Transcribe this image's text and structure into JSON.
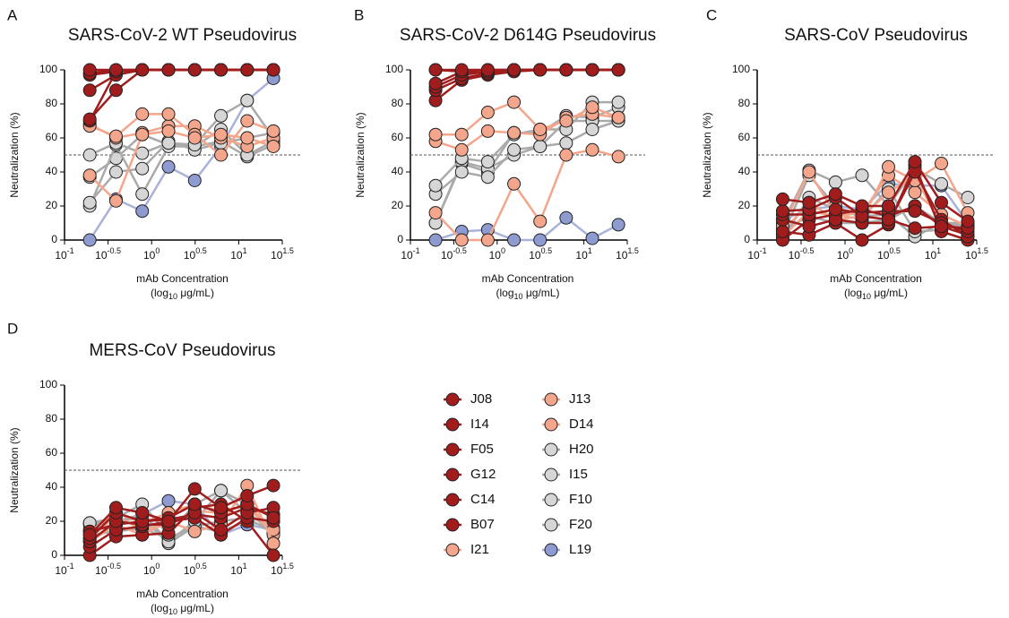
{
  "chart_data": [
    {
      "type": "line",
      "label": "A",
      "title": "SARS-CoV-2 WT Pseudovirus",
      "y_label": "Neutralization (%)",
      "x_label": "mAb Concentration",
      "x_unit": {
        "pre": "(log",
        "sub": "10",
        "post": " μg/mL)"
      },
      "log_x": true,
      "reference_line": 50,
      "x": [
        0.195,
        0.39,
        0.78,
        1.5625,
        3.125,
        6.25,
        12.5,
        25
      ],
      "xlim": [
        0.1,
        31.6228
      ],
      "xticks": [
        {
          "value": 0.1,
          "label": "10",
          "exponent": "-1"
        },
        {
          "value": 0.316228,
          "label": "10",
          "exponent": "-0.5"
        },
        {
          "value": 1,
          "label": "10",
          "exponent": "0"
        },
        {
          "value": 3.16228,
          "label": "10",
          "exponent": "0.5"
        },
        {
          "value": 10,
          "label": "10",
          "exponent": "1"
        },
        {
          "value": 31.6228,
          "label": "10",
          "exponent": "1.5"
        }
      ],
      "ylim": [
        0,
        100
      ],
      "yticks": [
        0,
        20,
        40,
        60,
        80,
        100
      ],
      "series": [
        {
          "name": "J08",
          "color": "#a11d1d",
          "values": [
            100,
            100,
            100,
            100,
            100,
            100,
            100,
            100
          ]
        },
        {
          "name": "I14",
          "color": "#a11d1d",
          "values": [
            98,
            100,
            100,
            100,
            100,
            100,
            100,
            100
          ]
        },
        {
          "name": "F05",
          "color": "#a11d1d",
          "values": [
            97,
            99,
            100,
            100,
            100,
            100,
            100,
            100
          ]
        },
        {
          "name": "G12",
          "color": "#a11d1d",
          "values": [
            88,
            97,
            100,
            100,
            100,
            100,
            100,
            100
          ]
        },
        {
          "name": "C14",
          "color": "#a11d1d",
          "values": [
            71,
            88,
            100,
            100,
            100,
            100,
            100,
            100
          ]
        },
        {
          "name": "B07",
          "color": "#a11d1d",
          "values": [
            70,
            99,
            100,
            100,
            100,
            100,
            100,
            100
          ]
        },
        {
          "name": "I21",
          "color": "#f4a68c",
          "values": [
            38,
            23,
            62,
            64,
            60,
            62,
            60,
            55
          ]
        },
        {
          "name": "J13",
          "color": "#f4a68c",
          "values": [
            67,
            61,
            74,
            74,
            62,
            50,
            70,
            64
          ]
        },
        {
          "name": "D14",
          "color": "#f4a68c",
          "values": [
            68,
            60,
            63,
            67,
            67,
            60,
            55,
            60
          ]
        },
        {
          "name": "H20",
          "color": "#d6d6d6",
          "values": [
            50,
            57,
            51,
            57,
            56,
            73,
            82,
            60
          ]
        },
        {
          "name": "I15",
          "color": "#d6d6d6",
          "values": [
            22,
            40,
            42,
            58,
            53,
            57,
            60,
            63
          ]
        },
        {
          "name": "F10",
          "color": "#d6d6d6",
          "values": [
            20,
            56,
            27,
            55,
            55,
            65,
            50,
            58
          ]
        },
        {
          "name": "F20",
          "color": "#d6d6d6",
          "values": [
            37,
            48,
            62,
            56,
            55,
            58,
            49,
            56
          ]
        },
        {
          "name": "L19",
          "color": "#8e9bd0",
          "values": [
            0,
            24,
            17,
            43,
            35,
            55,
            82,
            95
          ]
        }
      ]
    },
    {
      "type": "line",
      "label": "B",
      "title": "SARS-CoV-2 D614G Pseudovirus",
      "y_label": "Neutralization (%)",
      "x_label": "mAb Concentration",
      "x_unit": {
        "pre": "(log",
        "sub": "10",
        "post": " μg/mL)"
      },
      "log_x": true,
      "reference_line": 50,
      "x": [
        0.195,
        0.39,
        0.78,
        1.5625,
        3.125,
        6.25,
        12.5,
        25
      ],
      "xlim": [
        0.1,
        31.6228
      ],
      "xticks": [
        {
          "value": 0.1,
          "label": "10",
          "exponent": "-1"
        },
        {
          "value": 0.316228,
          "label": "10",
          "exponent": "-0.5"
        },
        {
          "value": 1,
          "label": "10",
          "exponent": "0"
        },
        {
          "value": 3.16228,
          "label": "10",
          "exponent": "0.5"
        },
        {
          "value": 10,
          "label": "10",
          "exponent": "1"
        },
        {
          "value": 31.6228,
          "label": "10",
          "exponent": "1.5"
        }
      ],
      "ylim": [
        0,
        100
      ],
      "yticks": [
        0,
        20,
        40,
        60,
        80,
        100
      ],
      "series": [
        {
          "name": "J08",
          "color": "#a11d1d",
          "values": [
            100,
            100,
            100,
            100,
            100,
            100,
            100,
            100
          ]
        },
        {
          "name": "I14",
          "color": "#a11d1d",
          "values": [
            92,
            99,
            100,
            100,
            100,
            100,
            100,
            100
          ]
        },
        {
          "name": "F05",
          "color": "#a11d1d",
          "values": [
            90,
            97,
            99,
            100,
            100,
            100,
            100,
            100
          ]
        },
        {
          "name": "G12",
          "color": "#a11d1d",
          "values": [
            88,
            95,
            98,
            100,
            100,
            100,
            100,
            100
          ]
        },
        {
          "name": "C14",
          "color": "#a11d1d",
          "values": [
            82,
            94,
            97,
            99,
            100,
            100,
            100,
            100
          ]
        },
        {
          "name": "B07",
          "color": "#a11d1d",
          "values": [
            100,
            99,
            98,
            100,
            100,
            100,
            100,
            100
          ]
        },
        {
          "name": "I21",
          "color": "#f4a68c",
          "values": [
            16,
            0,
            0,
            33,
            11,
            50,
            53,
            49
          ]
        },
        {
          "name": "J13",
          "color": "#f4a68c",
          "values": [
            62,
            62,
            75,
            81,
            65,
            70,
            78,
            72
          ]
        },
        {
          "name": "D14",
          "color": "#f4a68c",
          "values": [
            58,
            53,
            64,
            63,
            62,
            72,
            74,
            72
          ]
        },
        {
          "name": "H20",
          "color": "#d6d6d6",
          "values": [
            32,
            48,
            46,
            62,
            65,
            65,
            81,
            81
          ]
        },
        {
          "name": "I15",
          "color": "#d6d6d6",
          "values": [
            27,
            40,
            37,
            53,
            55,
            57,
            65,
            70
          ]
        },
        {
          "name": "F10",
          "color": "#d6d6d6",
          "values": [
            10,
            46,
            42,
            50,
            55,
            70,
            70,
            70
          ]
        },
        {
          "name": "F20",
          "color": "#d6d6d6",
          "values": [
            10,
            45,
            40,
            63,
            63,
            73,
            72,
            78
          ]
        },
        {
          "name": "L19",
          "color": "#8e9bd0",
          "values": [
            0,
            5,
            6,
            0,
            0,
            13,
            1,
            9
          ]
        }
      ]
    },
    {
      "type": "line",
      "label": "C",
      "title": "SARS-CoV Pseudovirus",
      "y_label": "Neutralization (%)",
      "x_label": "mAb Concentration",
      "x_unit": {
        "pre": "(log",
        "sub": "10",
        "post": " μg/mL)"
      },
      "log_x": true,
      "reference_line": 50,
      "x": [
        0.195,
        0.39,
        0.78,
        1.5625,
        3.125,
        6.25,
        12.5,
        25
      ],
      "xlim": [
        0.1,
        31.6228
      ],
      "xticks": [
        {
          "value": 0.1,
          "label": "10",
          "exponent": "-1"
        },
        {
          "value": 0.316228,
          "label": "10",
          "exponent": "-0.5"
        },
        {
          "value": 1,
          "label": "10",
          "exponent": "0"
        },
        {
          "value": 3.16228,
          "label": "10",
          "exponent": "0.5"
        },
        {
          "value": 10,
          "label": "10",
          "exponent": "1"
        },
        {
          "value": 31.6228,
          "label": "10",
          "exponent": "1.5"
        }
      ],
      "ylim": [
        0,
        100
      ],
      "yticks": [
        0,
        20,
        40,
        60,
        80,
        100
      ],
      "series": [
        {
          "name": "J08",
          "color": "#a11d1d",
          "values": [
            24,
            22,
            27,
            20,
            20,
            46,
            22,
            11
          ]
        },
        {
          "name": "I14",
          "color": "#a11d1d",
          "values": [
            17,
            18,
            25,
            14,
            12,
            7,
            8,
            7
          ]
        },
        {
          "name": "F05",
          "color": "#a11d1d",
          "values": [
            15,
            15,
            18,
            16,
            17,
            17,
            10,
            5
          ]
        },
        {
          "name": "G12",
          "color": "#a11d1d",
          "values": [
            12,
            8,
            12,
            10,
            10,
            40,
            12,
            2
          ]
        },
        {
          "name": "C14",
          "color": "#a11d1d",
          "values": [
            5,
            3,
            10,
            0,
            9,
            44,
            5,
            0
          ]
        },
        {
          "name": "B07",
          "color": "#a11d1d",
          "values": [
            0,
            12,
            15,
            18,
            14,
            20,
            8,
            3
          ]
        },
        {
          "name": "I21",
          "color": "#f4a68c",
          "values": [
            8,
            40,
            15,
            12,
            43,
            35,
            45,
            16
          ]
        },
        {
          "name": "J13",
          "color": "#f4a68c",
          "values": [
            2,
            17,
            14,
            16,
            38,
            28,
            15,
            8
          ]
        },
        {
          "name": "D14",
          "color": "#f4a68c",
          "values": [
            5,
            22,
            12,
            14,
            28,
            38,
            8,
            7
          ]
        },
        {
          "name": "H20",
          "color": "#d6d6d6",
          "values": [
            10,
            41,
            34,
            38,
            20,
            42,
            33,
            25
          ]
        },
        {
          "name": "I15",
          "color": "#d6d6d6",
          "values": [
            3,
            38,
            20,
            13,
            30,
            5,
            6,
            10
          ]
        },
        {
          "name": "F10",
          "color": "#d6d6d6",
          "values": [
            1,
            25,
            18,
            14,
            15,
            2,
            10,
            8
          ]
        },
        {
          "name": "F20",
          "color": "#d6d6d6",
          "values": [
            6,
            14,
            10,
            10,
            12,
            20,
            10,
            10
          ]
        },
        {
          "name": "L19",
          "color": "#8e9bd0",
          "values": [
            12,
            18,
            20,
            18,
            33,
            32,
            32,
            10
          ]
        }
      ]
    },
    {
      "type": "line",
      "label": "D",
      "title": "MERS-CoV Pseudovirus",
      "y_label": "Neutralization (%)",
      "x_label": "mAb Concentration",
      "x_unit": {
        "pre": "(log",
        "sub": "10",
        "post": " μg/mL)"
      },
      "log_x": true,
      "reference_line": 50,
      "x": [
        0.195,
        0.39,
        0.78,
        1.5625,
        3.125,
        6.25,
        12.5,
        25
      ],
      "xlim": [
        0.1,
        31.6228
      ],
      "xticks": [
        {
          "value": 0.1,
          "label": "10",
          "exponent": "-1"
        },
        {
          "value": 0.316228,
          "label": "10",
          "exponent": "-0.5"
        },
        {
          "value": 1,
          "label": "10",
          "exponent": "0"
        },
        {
          "value": 3.16228,
          "label": "10",
          "exponent": "0.5"
        },
        {
          "value": 10,
          "label": "10",
          "exponent": "1"
        },
        {
          "value": 31.6228,
          "label": "10",
          "exponent": "1.5"
        }
      ],
      "ylim": [
        0,
        100
      ],
      "yticks": [
        0,
        20,
        40,
        60,
        80,
        100
      ],
      "series": [
        {
          "name": "J08",
          "color": "#a11d1d",
          "values": [
            12,
            28,
            25,
            20,
            39,
            28,
            35,
            41
          ]
        },
        {
          "name": "I14",
          "color": "#a11d1d",
          "values": [
            10,
            25,
            20,
            22,
            30,
            25,
            30,
            22
          ]
        },
        {
          "name": "F05",
          "color": "#a11d1d",
          "values": [
            8,
            20,
            18,
            18,
            25,
            15,
            25,
            28
          ]
        },
        {
          "name": "G12",
          "color": "#a11d1d",
          "values": [
            5,
            15,
            17,
            20,
            22,
            12,
            22,
            20
          ]
        },
        {
          "name": "C14",
          "color": "#a11d1d",
          "values": [
            0,
            11,
            12,
            13,
            28,
            30,
            20,
            0
          ]
        },
        {
          "name": "B07",
          "color": "#a11d1d",
          "values": [
            14,
            18,
            20,
            21,
            24,
            22,
            28,
            24
          ]
        },
        {
          "name": "I21",
          "color": "#f4a68c",
          "values": [
            8,
            18,
            12,
            20,
            14,
            18,
            41,
            7
          ]
        },
        {
          "name": "J13",
          "color": "#f4a68c",
          "values": [
            10,
            23,
            15,
            18,
            26,
            25,
            30,
            15
          ]
        },
        {
          "name": "D14",
          "color": "#f4a68c",
          "values": [
            14,
            25,
            19,
            25,
            30,
            26,
            29,
            12
          ]
        },
        {
          "name": "H20",
          "color": "#d6d6d6",
          "values": [
            19,
            22,
            30,
            12,
            30,
            38,
            25,
            14
          ]
        },
        {
          "name": "I15",
          "color": "#d6d6d6",
          "values": [
            15,
            18,
            25,
            8,
            20,
            38,
            30,
            13
          ]
        },
        {
          "name": "F10",
          "color": "#d6d6d6",
          "values": [
            12,
            14,
            16,
            10,
            17,
            20,
            22,
            13
          ]
        },
        {
          "name": "F20",
          "color": "#d6d6d6",
          "values": [
            18,
            20,
            22,
            7,
            17,
            14,
            20,
            16
          ]
        },
        {
          "name": "L19",
          "color": "#8e9bd0",
          "values": [
            19,
            20,
            24,
            32,
            30,
            12,
            18,
            15
          ]
        }
      ]
    }
  ]
}
